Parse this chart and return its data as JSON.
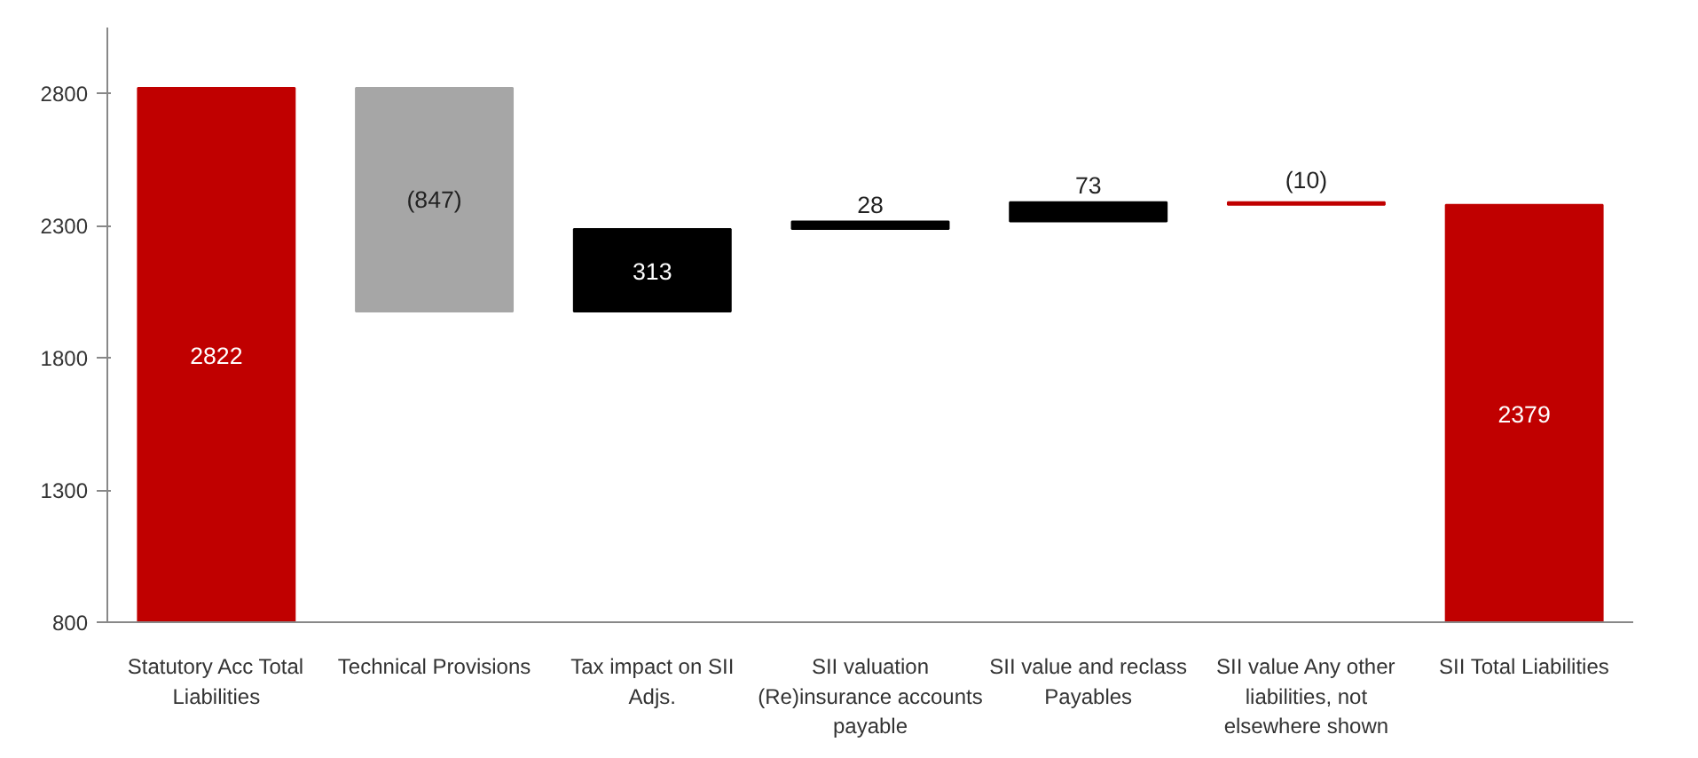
{
  "chart_data": {
    "type": "bar",
    "categories": [
      "Statutory Acc Total Liabilities",
      "Technical Provisions",
      "Tax impact on SII Adjs.",
      "SII valuation (Re)insurance accounts payable",
      "SII value and reclass Payables",
      "SII value Any other liabilities, not elsewhere shown",
      "SII Total Liabilities"
    ],
    "values": [
      2822,
      -847,
      313,
      28,
      73,
      -10,
      2379
    ],
    "base": [
      0,
      2822,
      1975,
      2288,
      2316,
      2389,
      0
    ],
    "colors": [
      "#c00000",
      "#a6a6a6",
      "#000000",
      "#000000",
      "#000000",
      "#c00000",
      "#c00000"
    ],
    "value_labels": [
      "2822",
      "(847)",
      "313",
      "28",
      "73",
      "(10)",
      "2379"
    ],
    "ylim": [
      800,
      3050
    ],
    "yticks": [
      800,
      1300,
      1800,
      2300,
      2800
    ],
    "grid": false
  }
}
